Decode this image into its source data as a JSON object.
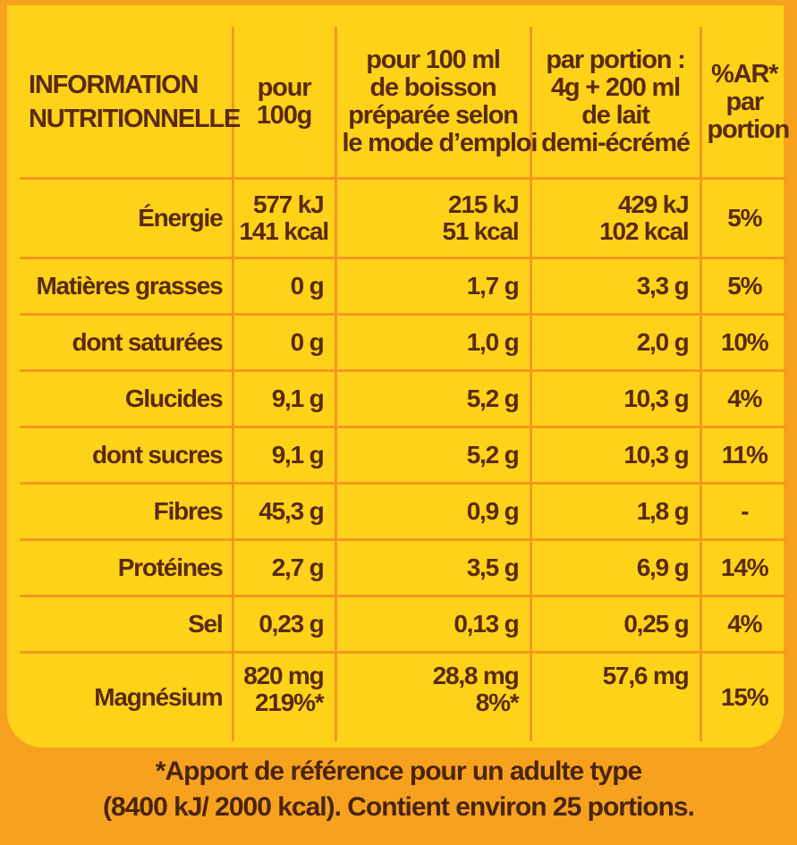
{
  "header": {
    "col1": [
      "INFORMATION",
      "NUTRITIONNELLE"
    ],
    "col2": [
      "pour",
      "100g"
    ],
    "col3": [
      "pour 100 ml",
      "de boisson",
      "préparée selon",
      "le mode d’emploi"
    ],
    "col4": [
      "par portion :",
      "4g + 200 ml",
      "de lait",
      "demi-écrémé"
    ],
    "col5": [
      "%AR*",
      "par",
      "portion"
    ]
  },
  "rows": [
    {
      "name": "Énergie",
      "per100g": [
        "577 kJ",
        "141 kcal"
      ],
      "per100ml": [
        "215 kJ",
        "51 kcal"
      ],
      "portion": [
        "429 kJ",
        "102 kcal"
      ],
      "ar": "5%"
    },
    {
      "name": "Matières grasses",
      "per100g": "0 g",
      "per100ml": "1,7 g",
      "portion": "3,3 g",
      "ar": "5%"
    },
    {
      "name": "dont saturées",
      "per100g": "0 g",
      "per100ml": "1,0 g",
      "portion": "2,0 g",
      "ar": "10%"
    },
    {
      "name": "Glucides",
      "per100g": "9,1 g",
      "per100ml": "5,2 g",
      "portion": "10,3 g",
      "ar": "4%"
    },
    {
      "name": "dont sucres",
      "per100g": "9,1 g",
      "per100ml": "5,2 g",
      "portion": "10,3 g",
      "ar": "11%"
    },
    {
      "name": "Fibres",
      "per100g": "45,3 g",
      "per100ml": "0,9 g",
      "portion": "1,8 g",
      "ar": "-"
    },
    {
      "name": "Protéines",
      "per100g": "2,7 g",
      "per100ml": "3,5 g",
      "portion": "6,9 g",
      "ar": "14%"
    },
    {
      "name": "Sel",
      "per100g": "0,23 g",
      "per100ml": "0,13 g",
      "portion": "0,25 g",
      "ar": "4%"
    },
    {
      "name": "Magnésium",
      "per100g": [
        "820 mg",
        "219%*"
      ],
      "per100ml": [
        "28,8 mg",
        "8%*"
      ],
      "portion": "57,6 mg",
      "ar": "15%"
    }
  ],
  "footnote": [
    "*Apport de référence pour un adulte type",
    "(8400 kJ/ 2000 kcal). Contient environ 25 portions."
  ]
}
